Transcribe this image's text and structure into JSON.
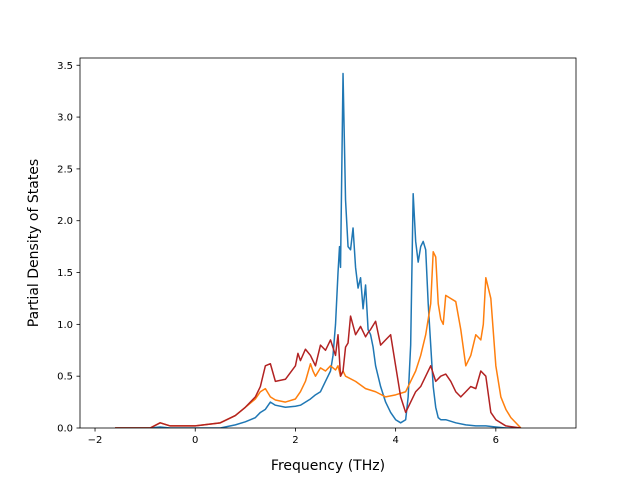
{
  "chart_data": {
    "type": "line",
    "title": "",
    "xlabel": "Frequency (THz)",
    "ylabel": "Partial Density of States",
    "xlim": [
      -2.3,
      7.6
    ],
    "ylim": [
      0,
      3.57
    ],
    "xticks": [
      -2,
      0,
      2,
      4,
      6
    ],
    "xtick_labels": [
      "−2",
      "0",
      "2",
      "4",
      "6"
    ],
    "yticks": [
      0.0,
      0.5,
      1.0,
      1.5,
      2.0,
      2.5,
      3.0,
      3.5
    ],
    "ytick_labels": [
      "0.0",
      "0.5",
      "1.0",
      "1.5",
      "2.0",
      "2.5",
      "3.0",
      "3.5"
    ],
    "grid": false,
    "series": [
      {
        "color": "#1f77b4",
        "x": [
          -1.6,
          -0.9,
          -0.7,
          -0.5,
          0.0,
          0.5,
          0.8,
          1.0,
          1.2,
          1.3,
          1.4,
          1.5,
          1.6,
          1.8,
          2.0,
          2.1,
          2.2,
          2.3,
          2.4,
          2.5,
          2.6,
          2.7,
          2.75,
          2.8,
          2.85,
          2.88,
          2.9,
          2.95,
          3.0,
          3.05,
          3.1,
          3.15,
          3.2,
          3.25,
          3.3,
          3.35,
          3.4,
          3.45,
          3.5,
          3.55,
          3.6,
          3.7,
          3.8,
          3.9,
          4.0,
          4.1,
          4.2,
          4.25,
          4.3,
          4.35,
          4.4,
          4.45,
          4.5,
          4.55,
          4.6,
          4.65,
          4.7,
          4.75,
          4.8,
          4.85,
          4.9,
          5.0,
          5.2,
          5.4,
          5.6,
          5.8,
          6.0,
          6.2,
          6.5
        ],
        "values": [
          0.0,
          0.0,
          0.01,
          0.0,
          0.0,
          0.0,
          0.03,
          0.06,
          0.1,
          0.15,
          0.18,
          0.25,
          0.22,
          0.2,
          0.21,
          0.22,
          0.25,
          0.28,
          0.32,
          0.35,
          0.45,
          0.55,
          0.7,
          1.0,
          1.5,
          1.75,
          1.55,
          3.42,
          2.2,
          1.75,
          1.72,
          1.93,
          1.55,
          1.35,
          1.45,
          1.15,
          1.38,
          0.95,
          0.9,
          0.78,
          0.6,
          0.4,
          0.25,
          0.15,
          0.08,
          0.05,
          0.08,
          0.3,
          0.8,
          2.26,
          1.8,
          1.6,
          1.75,
          1.8,
          1.72,
          1.2,
          0.8,
          0.4,
          0.2,
          0.1,
          0.08,
          0.08,
          0.05,
          0.03,
          0.02,
          0.02,
          0.01,
          0.0,
          0.0
        ]
      },
      {
        "color": "#ff7f0e",
        "x": [
          -1.6,
          -0.9,
          -0.7,
          -0.5,
          0.0,
          0.5,
          0.8,
          1.0,
          1.2,
          1.3,
          1.4,
          1.5,
          1.6,
          1.8,
          2.0,
          2.1,
          2.2,
          2.3,
          2.35,
          2.4,
          2.5,
          2.6,
          2.7,
          2.8,
          2.85,
          2.9,
          2.95,
          3.0,
          3.2,
          3.4,
          3.6,
          3.8,
          4.0,
          4.2,
          4.3,
          4.4,
          4.5,
          4.6,
          4.7,
          4.75,
          4.8,
          4.85,
          4.9,
          4.95,
          5.0,
          5.1,
          5.2,
          5.3,
          5.4,
          5.5,
          5.6,
          5.7,
          5.75,
          5.8,
          5.85,
          5.9,
          6.0,
          6.1,
          6.2,
          6.3,
          6.5
        ],
        "values": [
          0.0,
          0.0,
          0.05,
          0.02,
          0.02,
          0.05,
          0.12,
          0.2,
          0.28,
          0.35,
          0.38,
          0.3,
          0.27,
          0.25,
          0.28,
          0.35,
          0.45,
          0.62,
          0.55,
          0.5,
          0.58,
          0.55,
          0.6,
          0.56,
          0.6,
          0.5,
          0.55,
          0.5,
          0.45,
          0.38,
          0.35,
          0.3,
          0.32,
          0.35,
          0.45,
          0.55,
          0.7,
          0.9,
          1.2,
          1.7,
          1.65,
          1.2,
          1.05,
          1.0,
          1.28,
          1.25,
          1.22,
          0.95,
          0.6,
          0.7,
          0.9,
          0.85,
          1.0,
          1.45,
          1.35,
          1.25,
          0.6,
          0.3,
          0.18,
          0.1,
          0.0
        ]
      },
      {
        "color": "#b22222",
        "x": [
          -1.6,
          -0.9,
          -0.7,
          -0.5,
          0.0,
          0.5,
          0.8,
          1.0,
          1.2,
          1.3,
          1.4,
          1.5,
          1.6,
          1.8,
          2.0,
          2.05,
          2.1,
          2.2,
          2.3,
          2.4,
          2.5,
          2.6,
          2.7,
          2.8,
          2.85,
          2.9,
          2.95,
          3.0,
          3.05,
          3.1,
          3.2,
          3.3,
          3.4,
          3.45,
          3.5,
          3.6,
          3.7,
          3.8,
          3.9,
          4.0,
          4.1,
          4.2,
          4.3,
          4.4,
          4.5,
          4.6,
          4.7,
          4.8,
          4.9,
          5.0,
          5.1,
          5.2,
          5.3,
          5.4,
          5.5,
          5.6,
          5.7,
          5.8,
          5.9,
          6.0,
          6.2,
          6.5
        ],
        "values": [
          0.0,
          0.0,
          0.05,
          0.02,
          0.02,
          0.05,
          0.12,
          0.2,
          0.3,
          0.4,
          0.6,
          0.62,
          0.45,
          0.47,
          0.6,
          0.72,
          0.65,
          0.76,
          0.7,
          0.6,
          0.8,
          0.75,
          0.85,
          0.7,
          0.9,
          0.5,
          0.55,
          0.78,
          0.82,
          1.08,
          0.9,
          0.98,
          0.88,
          0.92,
          0.95,
          1.03,
          0.8,
          0.85,
          0.9,
          0.6,
          0.3,
          0.15,
          0.25,
          0.35,
          0.4,
          0.5,
          0.6,
          0.45,
          0.5,
          0.52,
          0.45,
          0.35,
          0.3,
          0.35,
          0.4,
          0.38,
          0.55,
          0.5,
          0.15,
          0.08,
          0.02,
          0.0
        ]
      }
    ]
  }
}
